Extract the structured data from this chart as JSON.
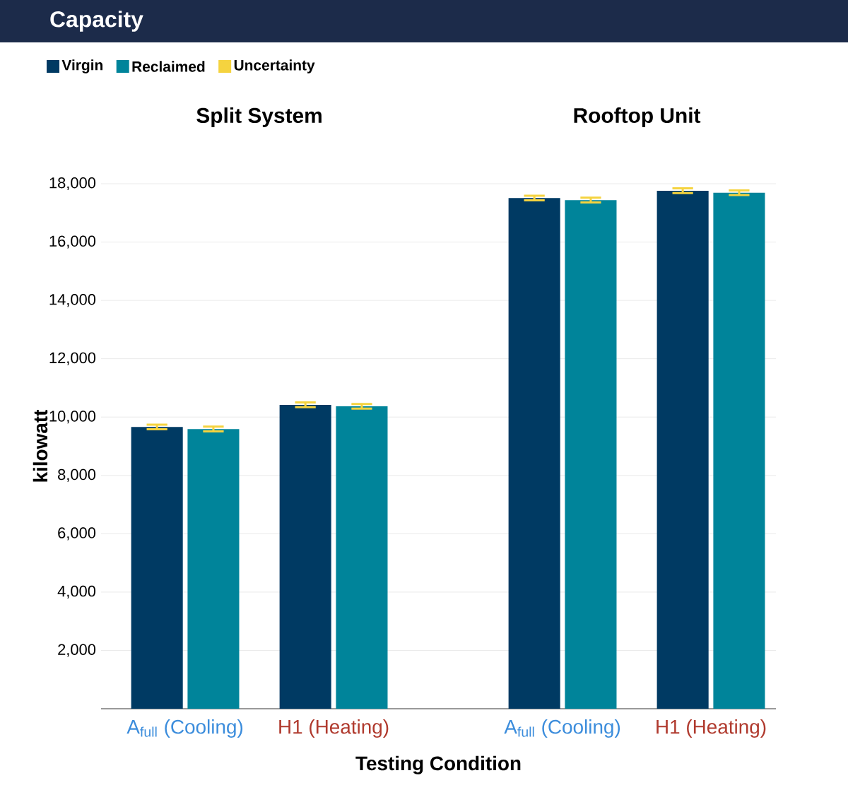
{
  "chart_data": {
    "type": "bar",
    "title": "Capacity",
    "xlabel": "Testing Condition",
    "ylabel": "kilowatt",
    "categories": [
      "A$_{full}$ (Cooling)",
      "H1 (Heating)",
      "A$_{full}$ (Cooling)",
      "H1 (Heating)"
    ],
    "series": [
      {
        "name": "Virgin",
        "color": "#003a63",
        "values": [
          9660,
          10420,
          17510,
          17760
        ],
        "errors": [
          80,
          80,
          80,
          80
        ]
      },
      {
        "name": "Reclaimed",
        "color": "#00849a",
        "values": [
          9590,
          10370,
          17440,
          17690
        ],
        "errors": [
          80,
          80,
          80,
          80
        ]
      }
    ],
    "ylim": [
      0,
      18000
    ],
    "yticks": [
      {
        "value": 2000,
        "label": "2,000"
      },
      {
        "value": 4000,
        "label": "4,000"
      },
      {
        "value": 6000,
        "label": "6,000"
      },
      {
        "value": 8000,
        "label": "8,000"
      },
      {
        "value": 10000,
        "label": "10,000"
      },
      {
        "value": 12000,
        "label": "12,000"
      },
      {
        "value": 14000,
        "label": "14,000"
      },
      {
        "value": 16000,
        "label": "16,000"
      },
      {
        "value": 18000,
        "label": "18,000"
      }
    ],
    "grid": "y",
    "legend": "top left",
    "annotations": [
      "Split System",
      "Rooftop Unit",
      "Uncertainty"
    ]
  }
}
